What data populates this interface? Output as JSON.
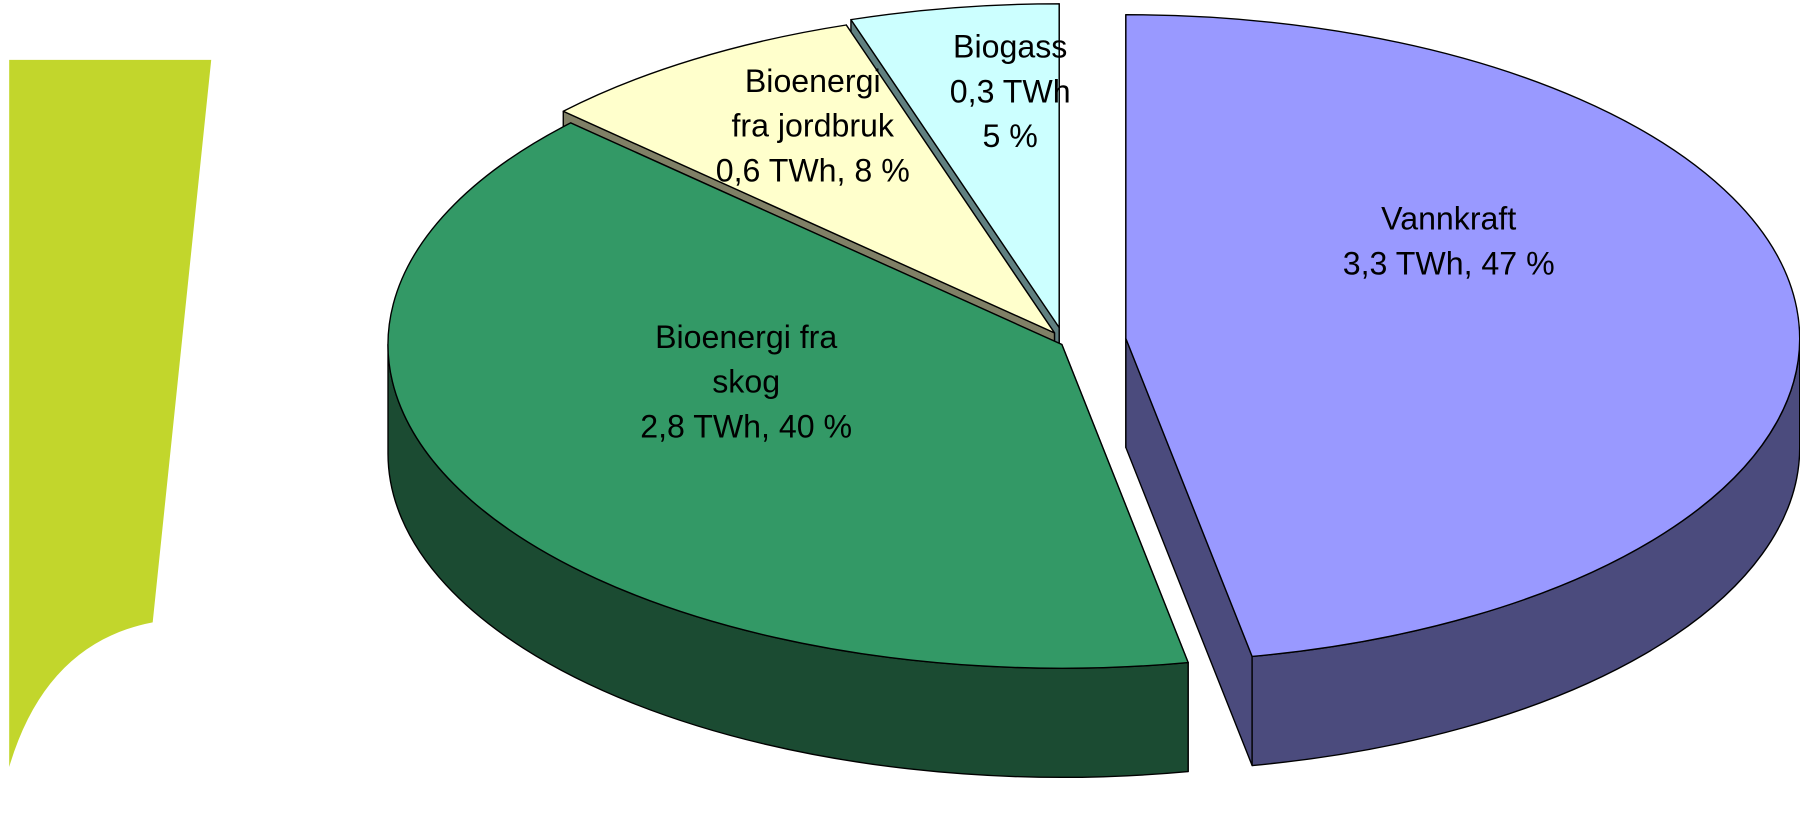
{
  "chart_data": {
    "type": "pie3d",
    "categories": [
      "Vannkraft",
      "Bioenergi fra\nskog",
      "Bioenergi\nfra jordbruk",
      "Biogass"
    ],
    "values": [
      47,
      40,
      8,
      5
    ],
    "value_labels": [
      "3,3 TWh, 47 %",
      "2,8 TWh, 40 %",
      "0,6 TWh, 8 %",
      "0,3 TWh\n5 %"
    ],
    "colors": [
      "#9999ff",
      "#339966",
      "#ffffcc",
      "#ccffff"
    ],
    "side_colors": [
      "#4b4b7d",
      "#1b4b32",
      "#808066",
      "#608080"
    ]
  }
}
